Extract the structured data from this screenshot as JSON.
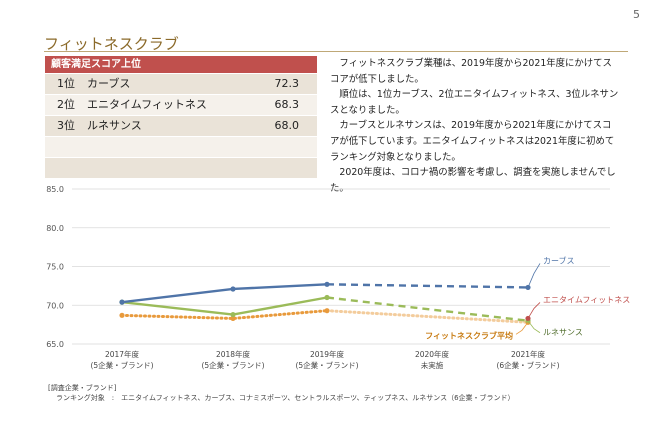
{
  "page_number": "5",
  "title": "フィットネスクラブ",
  "ranking": {
    "header": "顧客満足スコア上位",
    "rows": [
      {
        "position": "1位",
        "name": "カーブス",
        "score": "72.3"
      },
      {
        "position": "2位",
        "name": "エニタイムフィットネス",
        "score": "68.3"
      },
      {
        "position": "3位",
        "name": "ルネサンス",
        "score": "68.0"
      }
    ]
  },
  "description": [
    "フィットネスクラブ業種は、2019年度から2021年度にかけてスコアが低下しました。",
    "順位は、1位カーブス、2位エニタイムフィットネス、3位ルネサンスとなりました。",
    "カーブスとルネサンスは、2019年度から2021年度にかけてスコアが低下しています。エニタイムフィットネスは2021年度に初めてランキング対象となりました。",
    "2020年度は、コロナ禍の影響を考慮し、調査を実施しませんでした。"
  ],
  "chart_data": {
    "type": "line",
    "categories": [
      {
        "year": "2017年度",
        "sub": "(5企業・ブランド)"
      },
      {
        "year": "2018年度",
        "sub": "(5企業・ブランド)"
      },
      {
        "year": "2019年度",
        "sub": "(5企業・ブランド)"
      },
      {
        "year": "2020年度",
        "sub": "未実施"
      },
      {
        "year": "2021年度",
        "sub": "(6企業・ブランド)"
      }
    ],
    "ylim": [
      65.0,
      85.0
    ],
    "yticks": [
      "65.0",
      "70.0",
      "75.0",
      "80.0",
      "85.0"
    ],
    "series": [
      {
        "name": "カーブス",
        "color": "#4f74a8",
        "values": [
          70.4,
          72.1,
          72.7,
          null,
          72.3
        ],
        "style": "solid",
        "label_color": "#4f74a8"
      },
      {
        "name": "エニタイムフィットネス",
        "color": "#c0504d",
        "values": [
          null,
          null,
          null,
          null,
          68.3
        ],
        "style": "solid",
        "label_color": "#c0504d"
      },
      {
        "name": "ルネサンス",
        "color": "#9bbb59",
        "values": [
          70.4,
          68.8,
          71.0,
          null,
          68.0
        ],
        "style": "solid",
        "label_color": "#4e6b2a"
      },
      {
        "name": "フィットネスクラブ平均",
        "color": "#e89a3c",
        "values": [
          68.7,
          68.3,
          69.3,
          null,
          67.8
        ],
        "style": "dotted",
        "label_color": "#c77a10"
      }
    ]
  },
  "footnote": {
    "heading": "[調査企業・ブランド]",
    "targets": "ランキング対象　:　エニタイムフィットネス、カーブス、コナミスポーツ、セントラルスポーツ、ティップネス、ルネサンス（6企業・ブランド）"
  }
}
